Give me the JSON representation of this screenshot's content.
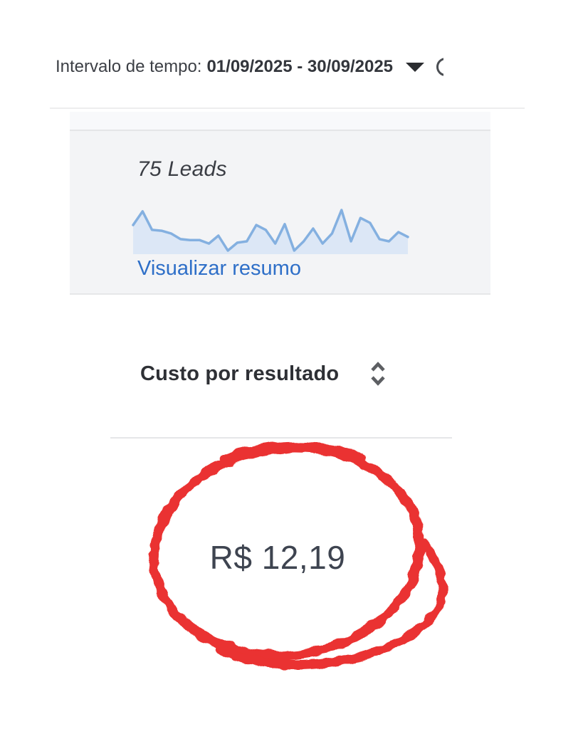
{
  "toolbar": {
    "time_range_label": "Intervalo de tempo:",
    "time_range_value": "01/09/2025 - 30/09/2025"
  },
  "leads_cell": {
    "summary_text": "75 Leads",
    "count": "75",
    "unit": "Leads",
    "link_label": "Visualizar resumo"
  },
  "column_header": {
    "label": "Custo por resultado"
  },
  "result_cell": {
    "value": "R$ 12,19"
  },
  "icons": {
    "caret": "caret-down-icon",
    "sort": "sort-chevrons-icon",
    "partial": "partial-circle-icon",
    "annotation": "hand-drawn-red-circle"
  },
  "colors": {
    "link_blue": "#2e6fc8",
    "sparkline_line": "#84b0e0",
    "sparkline_fill": "#dce7f6",
    "annotation_red": "#ea3330",
    "panel_bg": "#f3f4f6",
    "value_text": "#3e4450",
    "text_dark": "#3a3d44"
  },
  "chart_data": {
    "type": "area",
    "title": "75 Leads",
    "xlabel": "",
    "ylabel": "",
    "x_range": [
      "01/09/2025",
      "30/09/2025"
    ],
    "x": [
      1,
      2,
      3,
      4,
      5,
      6,
      7,
      8,
      9,
      10,
      11,
      12,
      13,
      14,
      15,
      16,
      17,
      18,
      19,
      20,
      21,
      22,
      23,
      24,
      25,
      26,
      27,
      28,
      29,
      30
    ],
    "values": [
      66,
      97,
      55,
      53,
      47,
      34,
      32,
      32,
      24,
      42,
      8,
      26,
      29,
      66,
      55,
      24,
      68,
      8,
      29,
      58,
      24,
      47,
      100,
      29,
      82,
      71,
      34,
      29,
      50,
      39
    ],
    "ylim": [
      0,
      100
    ],
    "axes_visible": false,
    "grid": false,
    "legend": "none",
    "note": "sparkline; values are relative heights (0-100) estimated from pixels"
  }
}
